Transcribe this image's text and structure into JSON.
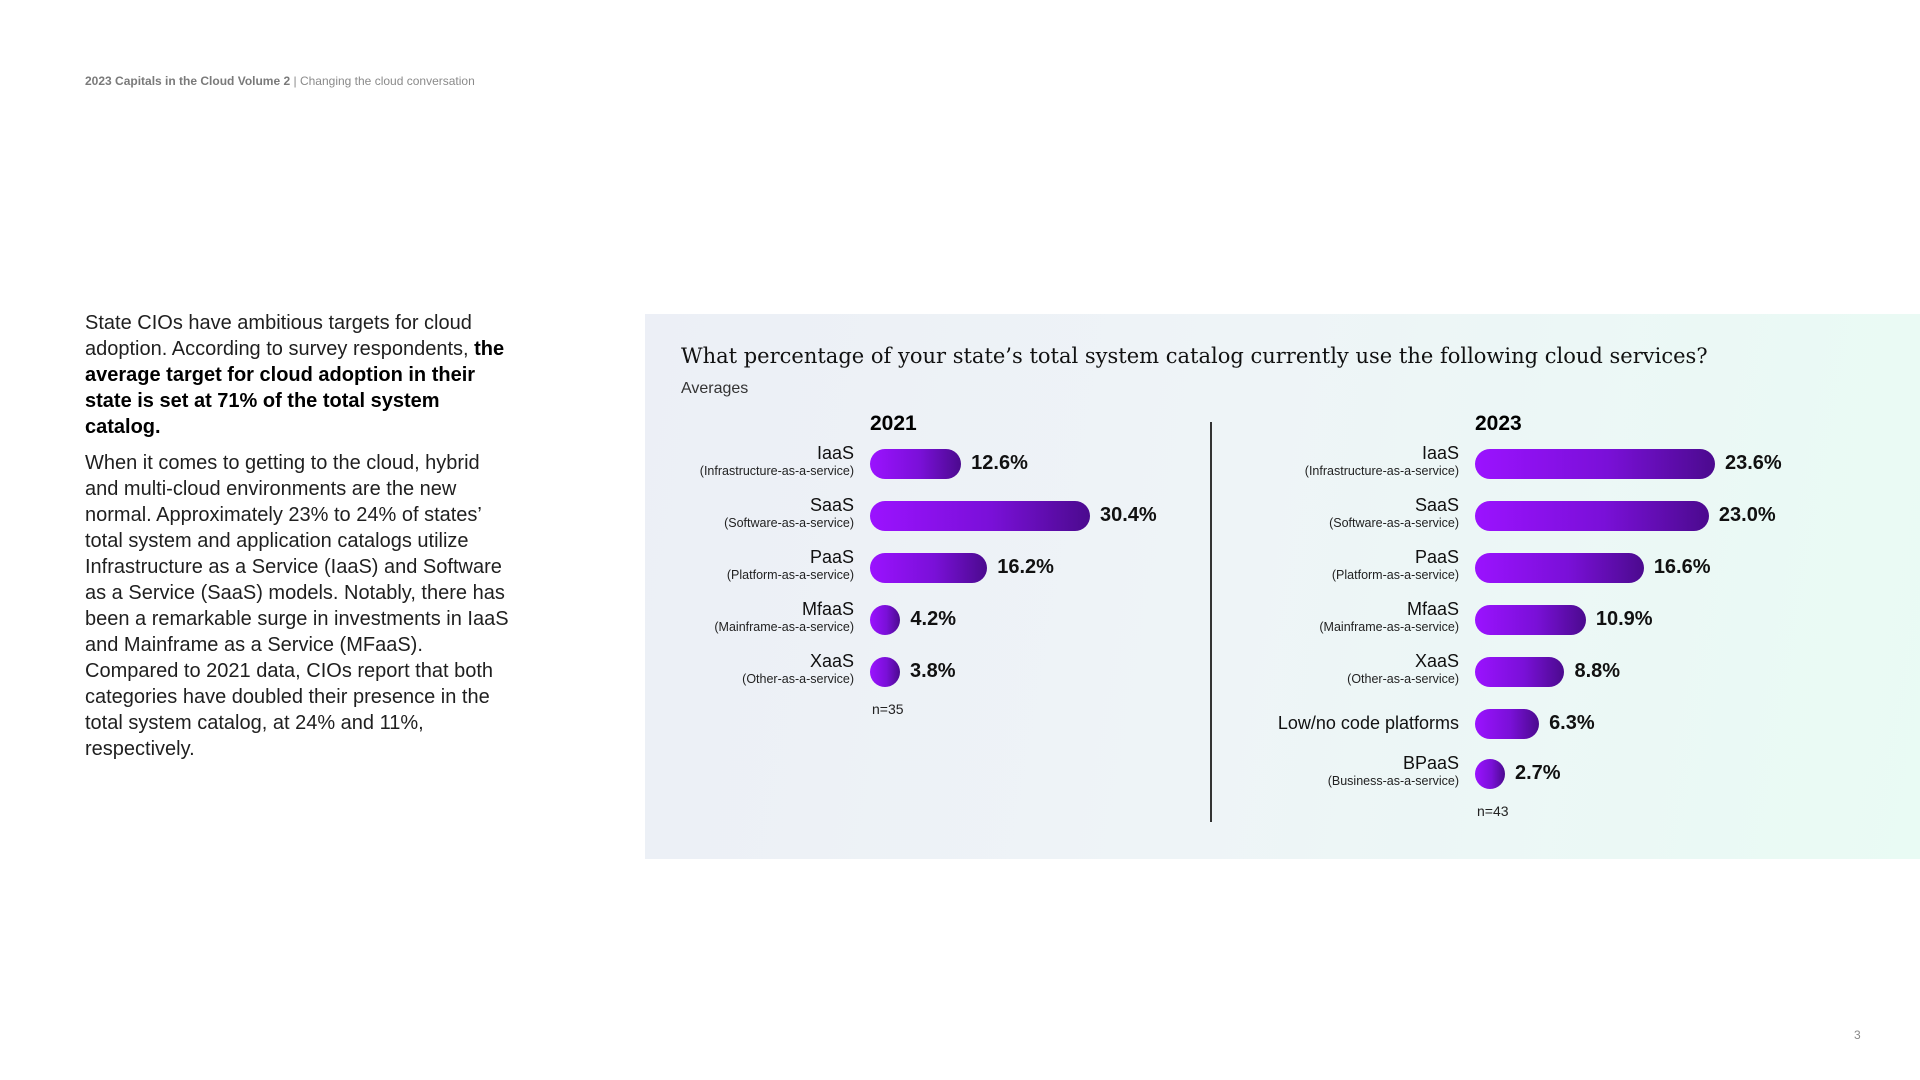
{
  "header": {
    "bold": "2023 Capitals in the Cloud Volume 2",
    "sep": " | ",
    "rest": "Changing the cloud conversation"
  },
  "intro": {
    "p1_normal": "State CIOs have ambitious targets for cloud adoption. According to survey respondents, ",
    "p1_bold": "the average target for cloud adoption in their state is set at 71% of the total system catalog.",
    "p2": "When it comes to getting to the cloud, hybrid and multi-cloud environments are the new normal. Approximately 23% to 24% of states’ total system and application catalogs utilize Infrastructure as a Service (IaaS) and Software as a Service (SaaS) models. Notably, there has been a remarkable surge in investments in IaaS and Mainframe as a Service (MFaaS). Compared to 2021 data, CIOs report that both categories have doubled their presence in the total system catalog, at 24% and 11%, respectively."
  },
  "page_number": "3",
  "chart_data": {
    "type": "bar",
    "orientation": "horizontal",
    "title": "What percentage of your state’s total system catalog currently use the following cloud services?",
    "subtitle": "Averages",
    "bar_color": "#8a10f0",
    "panels": [
      {
        "year": "2021",
        "n": "n=35",
        "xlim": [
          0,
          30.4
        ],
        "categories": [
          {
            "label": "IaaS",
            "sub": "(Infrastructure-as-a-service)",
            "value": 12.6,
            "display": "12.6%"
          },
          {
            "label": "SaaS",
            "sub": "(Software-as-a-service)",
            "value": 30.4,
            "display": "30.4%"
          },
          {
            "label": "PaaS",
            "sub": "(Platform-as-a-service)",
            "value": 16.2,
            "display": "16.2%"
          },
          {
            "label": "MfaaS",
            "sub": "(Mainframe-as-a-service)",
            "value": 4.2,
            "display": "4.2%"
          },
          {
            "label": "XaaS",
            "sub": "(Other-as-a-service)",
            "value": 3.8,
            "display": "3.8%"
          }
        ]
      },
      {
        "year": "2023",
        "n": "n=43",
        "xlim": [
          0,
          23.6
        ],
        "categories": [
          {
            "label": "IaaS",
            "sub": "(Infrastructure-as-a-service)",
            "value": 23.6,
            "display": "23.6%"
          },
          {
            "label": "SaaS",
            "sub": "(Software-as-a-service)",
            "value": 23.0,
            "display": "23.0%"
          },
          {
            "label": "PaaS",
            "sub": "(Platform-as-a-service)",
            "value": 16.6,
            "display": "16.6%"
          },
          {
            "label": "MfaaS",
            "sub": "(Mainframe-as-a-service)",
            "value": 10.9,
            "display": "10.9%"
          },
          {
            "label": "XaaS",
            "sub": "(Other-as-a-service)",
            "value": 8.8,
            "display": "8.8%"
          },
          {
            "label": "Low/no code platforms",
            "sub": "",
            "value": 6.3,
            "display": "6.3%"
          },
          {
            "label": "BPaaS",
            "sub": "(Business-as-a-service)",
            "value": 2.7,
            "display": "2.7%"
          }
        ]
      }
    ]
  }
}
